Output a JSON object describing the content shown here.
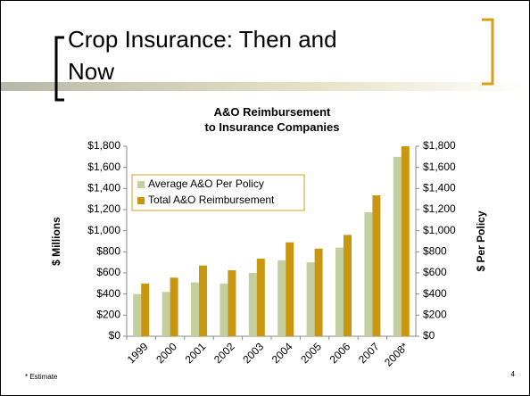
{
  "slide_title": "Crop Insurance: Then and\nNow",
  "footnote": "* Estimate",
  "page_number": "4",
  "chart_data": {
    "type": "bar",
    "title": "A&O Reimbursement\nto Insurance Companies",
    "ylabel": "$ Millions",
    "y2label": "$ Per Policy",
    "categories": [
      "1999",
      "2000",
      "2001",
      "2002",
      "2003",
      "2004",
      "2005",
      "2006",
      "2007",
      "2008*"
    ],
    "series": [
      {
        "name": "Average A&O Per Policy",
        "color": "#c3cf9e",
        "axis": "y2",
        "values": [
          400,
          420,
          510,
          500,
          600,
          720,
          700,
          840,
          1175,
          1700
        ]
      },
      {
        "name": "Total A&O Reimbursement",
        "color": "#c9970f",
        "values": [
          500,
          555,
          670,
          625,
          735,
          890,
          830,
          960,
          1335,
          1800
        ]
      }
    ],
    "ylim": [
      0,
      1800
    ],
    "yticks": [
      {
        "value": 0,
        "label": "$0"
      },
      {
        "value": 200,
        "label": "$200"
      },
      {
        "value": 400,
        "label": "$400"
      },
      {
        "value": 600,
        "label": "$600"
      },
      {
        "value": 800,
        "label": "$800"
      },
      {
        "value": 1000,
        "label": "$1,000"
      },
      {
        "value": 1200,
        "label": "$1,200"
      },
      {
        "value": 1400,
        "label": "$1,400"
      },
      {
        "value": 1600,
        "label": "$1,600"
      },
      {
        "value": 1800,
        "label": "$1,800"
      }
    ],
    "y2lim": [
      0,
      1800
    ],
    "y2ticks": [
      {
        "value": 0,
        "label": "$0"
      },
      {
        "value": 200,
        "label": "$200"
      },
      {
        "value": 400,
        "label": "$400"
      },
      {
        "value": 600,
        "label": "$600"
      },
      {
        "value": 800,
        "label": "$800"
      },
      {
        "value": 1000,
        "label": "$1,000"
      },
      {
        "value": 1200,
        "label": "$1,200"
      },
      {
        "value": 1400,
        "label": "$1,400"
      },
      {
        "value": 1600,
        "label": "$1,600"
      },
      {
        "value": 1800,
        "label": "$1,800"
      }
    ],
    "grid": false,
    "legend": "upper left"
  }
}
